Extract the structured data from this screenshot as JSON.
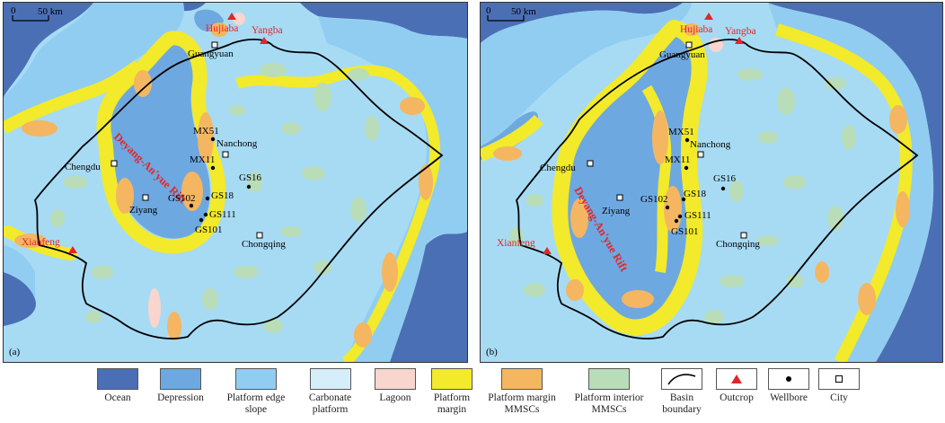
{
  "panels": [
    {
      "id": "a",
      "label": "(a)",
      "scale_label": "50 km",
      "rift_label": "Deyang-An'yue Rift",
      "outcrops": [
        "Hujiaba",
        "Yangba",
        "Xianfeng"
      ],
      "cities": [
        "Guangyuan",
        "Nanchong",
        "Chengdu",
        "Ziyang",
        "Chongqing"
      ],
      "wells": [
        "MX51",
        "MX11",
        "GS16",
        "GS18",
        "GS102",
        "GS111",
        "GS101"
      ]
    },
    {
      "id": "b",
      "label": "(b)",
      "scale_label": "50 km",
      "rift_label": "Deyang-An'yue Rift",
      "outcrops": [
        "Hujiaba",
        "Yangba",
        "Xianfeng"
      ],
      "cities": [
        "Guangyuan",
        "Nanchong",
        "Chengdu",
        "Ziyang",
        "Chongqing"
      ],
      "wells": [
        "MX51",
        "MX11",
        "GS16",
        "GS18",
        "GS102",
        "GS111",
        "GS101"
      ]
    }
  ],
  "legend": [
    {
      "label": "Ocean",
      "color": "#4b6fb5",
      "kind": "fill"
    },
    {
      "label": "Depression",
      "color": "#6ea8e0",
      "kind": "fill"
    },
    {
      "label": "Platform edge slope",
      "color": "#91cdf1",
      "kind": "fill"
    },
    {
      "label": "Carbonate platform",
      "color": "#d6eef9",
      "kind": "fill"
    },
    {
      "label": "Lagoon",
      "color": "#f8d5cd",
      "kind": "fill"
    },
    {
      "label": "Platform margin",
      "color": "#f2ea2a",
      "kind": "fill"
    },
    {
      "label": "Platform margin MMSCs",
      "color": "#f4b661",
      "kind": "fill"
    },
    {
      "label": "Platform interior MMSCs",
      "color": "#b9ddb9",
      "kind": "fill"
    },
    {
      "label": "Basin boundary",
      "kind": "line-icon"
    },
    {
      "label": "Outcrop",
      "kind": "triangle-icon"
    },
    {
      "label": "Wellbore",
      "kind": "dot-icon"
    },
    {
      "label": "City",
      "kind": "square-icon"
    }
  ]
}
